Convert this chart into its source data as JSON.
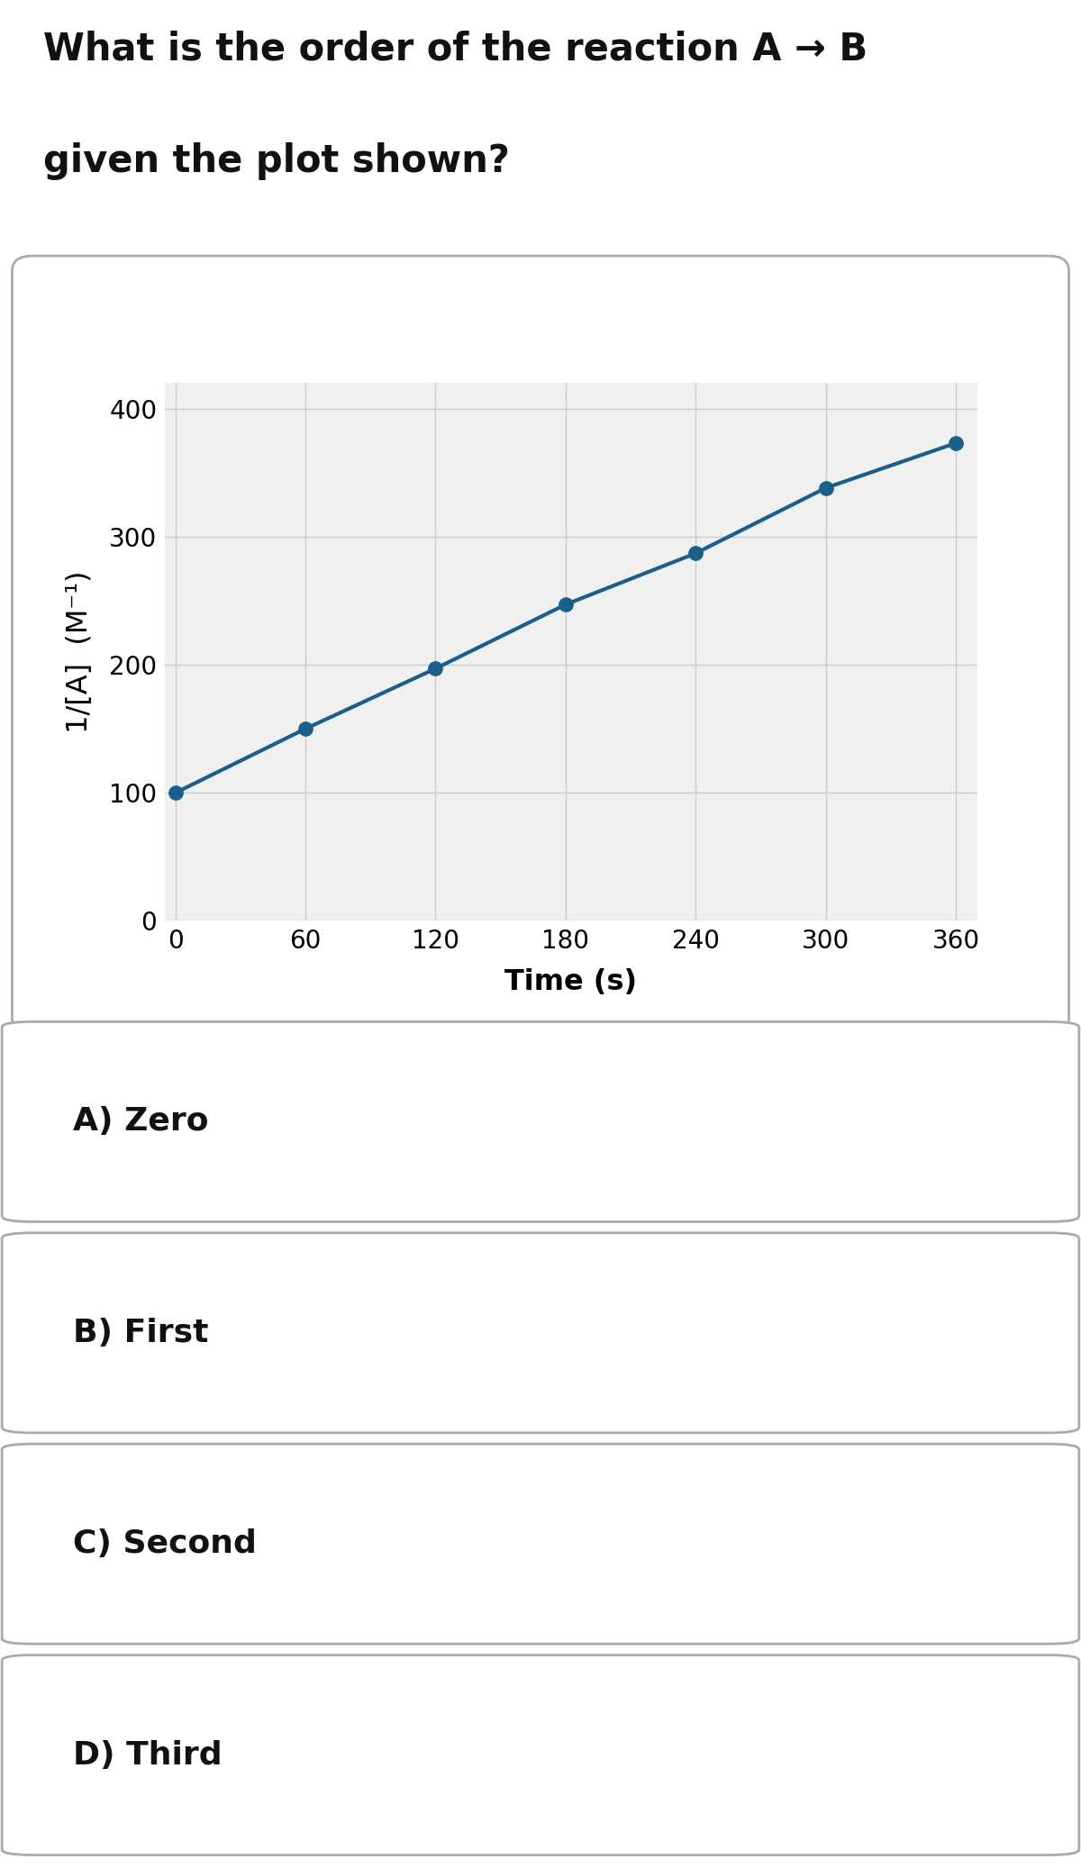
{
  "question_line1": "What is the order of the reaction A → B",
  "question_line2": "given the plot shown?",
  "x_data": [
    0,
    60,
    120,
    180,
    240,
    300,
    360
  ],
  "y_data": [
    100,
    150,
    197,
    247,
    287,
    338,
    373
  ],
  "xlabel": "Time (s)",
  "ylabel": "1/[A]  (M⁻¹)",
  "xlim": [
    -5,
    370
  ],
  "ylim": [
    0,
    420
  ],
  "xticks": [
    0,
    60,
    120,
    180,
    240,
    300,
    360
  ],
  "yticks": [
    0,
    100,
    200,
    300,
    400
  ],
  "line_color": "#1a5f8a",
  "marker_color": "#1a5f8a",
  "grid_color": "#cccccc",
  "bg_color": "#f0f0f0",
  "panel_bg": "#f5f5f5",
  "choices": [
    "A) Zero",
    "B) First",
    "C) Second",
    "D) Third"
  ],
  "choice_fontsize": 26,
  "question_fontsize": 30,
  "tick_fontsize": 20,
  "axis_label_fontsize": 23
}
